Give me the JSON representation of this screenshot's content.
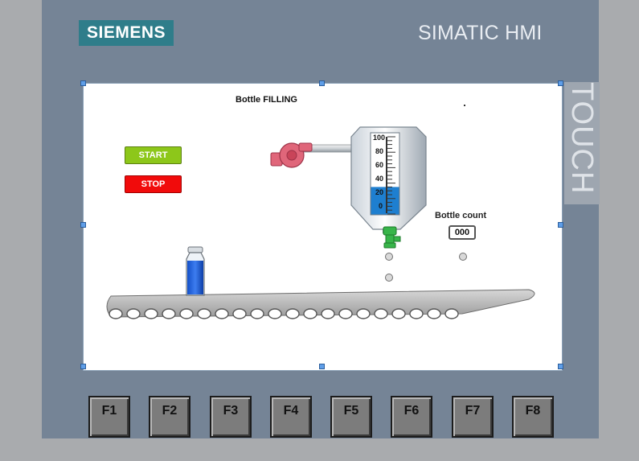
{
  "device": {
    "brand": "SIEMENS",
    "model": "SIMATIC HMI",
    "side_label": "TOUCH"
  },
  "screen": {
    "title": "Bottle FILLING",
    "start_label": "START",
    "stop_label": "STOP",
    "bottle_count_label": "Bottle count",
    "bottle_count_value": "000",
    "tank_scale": [
      "100",
      "80",
      "60",
      "40",
      "20",
      "0"
    ],
    "tank_level_percent": 35,
    "colors": {
      "start": "#8dc71a",
      "stop": "#f10b0b",
      "liquid": "#1e7fd0",
      "pump": "#e0667a",
      "valve": "#38b54a",
      "bottle_liquid": "#1a5de0"
    }
  },
  "function_keys": [
    "F1",
    "F2",
    "F3",
    "F4",
    "F5",
    "F6",
    "F7",
    "F8"
  ]
}
